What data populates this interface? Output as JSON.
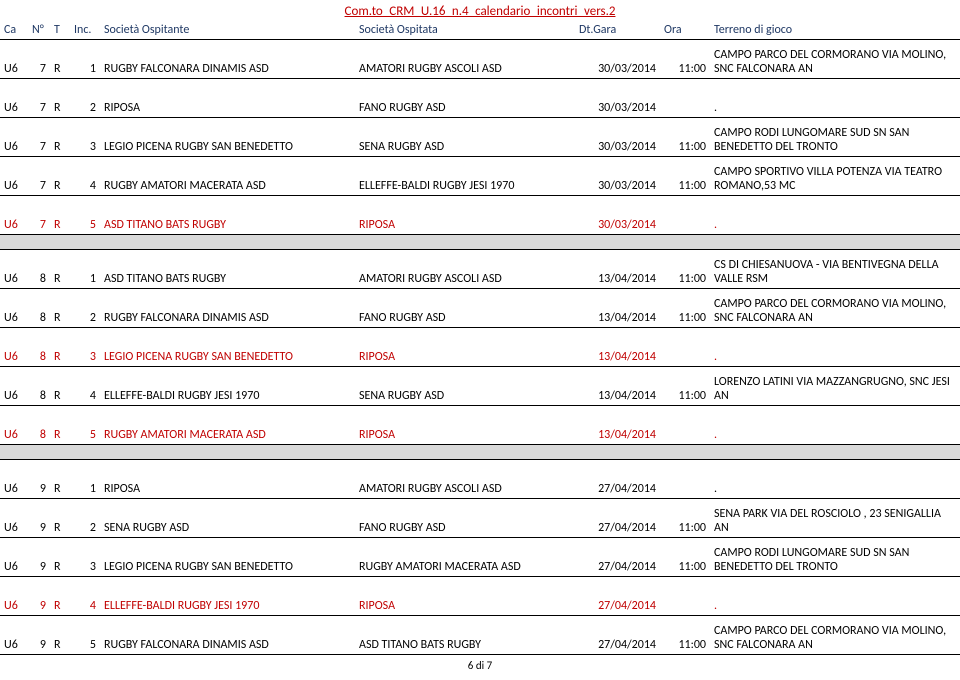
{
  "doc_title": "Com.to_CRM_U.16_n.4_calendario_incontri_vers.2",
  "header": {
    "ca": "Ca",
    "n": "N°",
    "t": "T",
    "inc": "Inc.",
    "ospitante": "Società Ospitante",
    "ospitata": "Società Ospitata",
    "dt": "Dt.Gara",
    "ora": "Ora",
    "terreno": "Terreno di gioco"
  },
  "footer": "6 di 7",
  "rows": [
    {
      "ca": "U6",
      "n": "7",
      "t": "R",
      "inc": "1",
      "osp": "RUGBY FALCONARA DINAMIS ASD",
      "osi": "AMATORI RUGBY ASCOLI ASD",
      "dt": "30/03/2014",
      "ora": "11:00",
      "ter": "CAMPO PARCO DEL CORMORANO VIA MOLINO, SNC  FALCONARA AN",
      "red": false
    },
    {
      "ca": "U6",
      "n": "7",
      "t": "R",
      "inc": "2",
      "osp": "RIPOSA",
      "osi": "FANO RUGBY ASD",
      "dt": "30/03/2014",
      "ora": "",
      "ter": ".",
      "red": false
    },
    {
      "ca": "U6",
      "n": "7",
      "t": "R",
      "inc": "3",
      "osp": "LEGIO PICENA RUGBY SAN BENEDETTO",
      "osi": "SENA RUGBY ASD",
      "dt": "30/03/2014",
      "ora": "11:00",
      "ter": "CAMPO RODI LUNGOMARE SUD SN SAN BENEDETTO DEL TRONTO",
      "red": false
    },
    {
      "ca": "U6",
      "n": "7",
      "t": "R",
      "inc": "4",
      "osp": "RUGBY AMATORI MACERATA ASD",
      "osi": "ELLEFFE-BALDI RUGBY JESI 1970",
      "dt": "30/03/2014",
      "ora": "11:00",
      "ter": "CAMPO SPORTIVO VILLA POTENZA VIA TEATRO ROMANO,53  MC",
      "red": false
    },
    {
      "ca": "U6",
      "n": "7",
      "t": "R",
      "inc": "5",
      "osp": "ASD TITANO  BATS RUGBY",
      "osi": "RIPOSA",
      "dt": "30/03/2014",
      "ora": "",
      "ter": ".",
      "red": true
    },
    {
      "spacer": true
    },
    {
      "ca": "U6",
      "n": "8",
      "t": "R",
      "inc": "1",
      "osp": "ASD TITANO  BATS RUGBY",
      "osi": "AMATORI RUGBY ASCOLI ASD",
      "dt": "13/04/2014",
      "ora": "11:00",
      "ter": "CS DI CHIESANUOVA - VIA BENTIVEGNA DELLA VALLE RSM",
      "red": false
    },
    {
      "ca": "U6",
      "n": "8",
      "t": "R",
      "inc": "2",
      "osp": "RUGBY FALCONARA DINAMIS ASD",
      "osi": "FANO RUGBY ASD",
      "dt": "13/04/2014",
      "ora": "11:00",
      "ter": "CAMPO PARCO DEL CORMORANO VIA MOLINO, SNC  FALCONARA AN",
      "red": false
    },
    {
      "ca": "U6",
      "n": "8",
      "t": "R",
      "inc": "3",
      "osp": "LEGIO PICENA RUGBY SAN BENEDETTO",
      "osi": "RIPOSA",
      "dt": "13/04/2014",
      "ora": "",
      "ter": ".",
      "red": true
    },
    {
      "ca": "U6",
      "n": "8",
      "t": "R",
      "inc": "4",
      "osp": "ELLEFFE-BALDI RUGBY JESI 1970",
      "osi": "SENA RUGBY ASD",
      "dt": "13/04/2014",
      "ora": "11:00",
      "ter": "LORENZO LATINI VIA MAZZANGRUGNO, SNC  JESI AN",
      "red": false
    },
    {
      "ca": "U6",
      "n": "8",
      "t": "R",
      "inc": "5",
      "osp": "RUGBY AMATORI MACERATA ASD",
      "osi": "RIPOSA",
      "dt": "13/04/2014",
      "ora": "",
      "ter": ".",
      "red": true
    },
    {
      "spacer": true
    },
    {
      "ca": "U6",
      "n": "9",
      "t": "R",
      "inc": "1",
      "osp": "RIPOSA",
      "osi": "AMATORI RUGBY ASCOLI ASD",
      "dt": "27/04/2014",
      "ora": "",
      "ter": ".",
      "red": false
    },
    {
      "ca": "U6",
      "n": "9",
      "t": "R",
      "inc": "2",
      "osp": "SENA RUGBY ASD",
      "osi": "FANO RUGBY ASD",
      "dt": "27/04/2014",
      "ora": "11:00",
      "ter": "SENA PARK VIA DEL ROSCIOLO , 23 SENIGALLIA AN",
      "red": false
    },
    {
      "ca": "U6",
      "n": "9",
      "t": "R",
      "inc": "3",
      "osp": "LEGIO PICENA RUGBY SAN BENEDETTO",
      "osi": "RUGBY AMATORI MACERATA ASD",
      "dt": "27/04/2014",
      "ora": "11:00",
      "ter": "CAMPO RODI LUNGOMARE SUD SN SAN BENEDETTO DEL TRONTO",
      "red": false
    },
    {
      "ca": "U6",
      "n": "9",
      "t": "R",
      "inc": "4",
      "osp": "ELLEFFE-BALDI RUGBY JESI 1970",
      "osi": "RIPOSA",
      "dt": "27/04/2014",
      "ora": "",
      "ter": ".",
      "red": true
    },
    {
      "ca": "U6",
      "n": "9",
      "t": "R",
      "inc": "5",
      "osp": "RUGBY FALCONARA DINAMIS ASD",
      "osi": "ASD TITANO  BATS RUGBY",
      "dt": "27/04/2014",
      "ora": "11:00",
      "ter": "CAMPO PARCO DEL CORMORANO VIA MOLINO, SNC  FALCONARA AN",
      "red": false
    }
  ]
}
